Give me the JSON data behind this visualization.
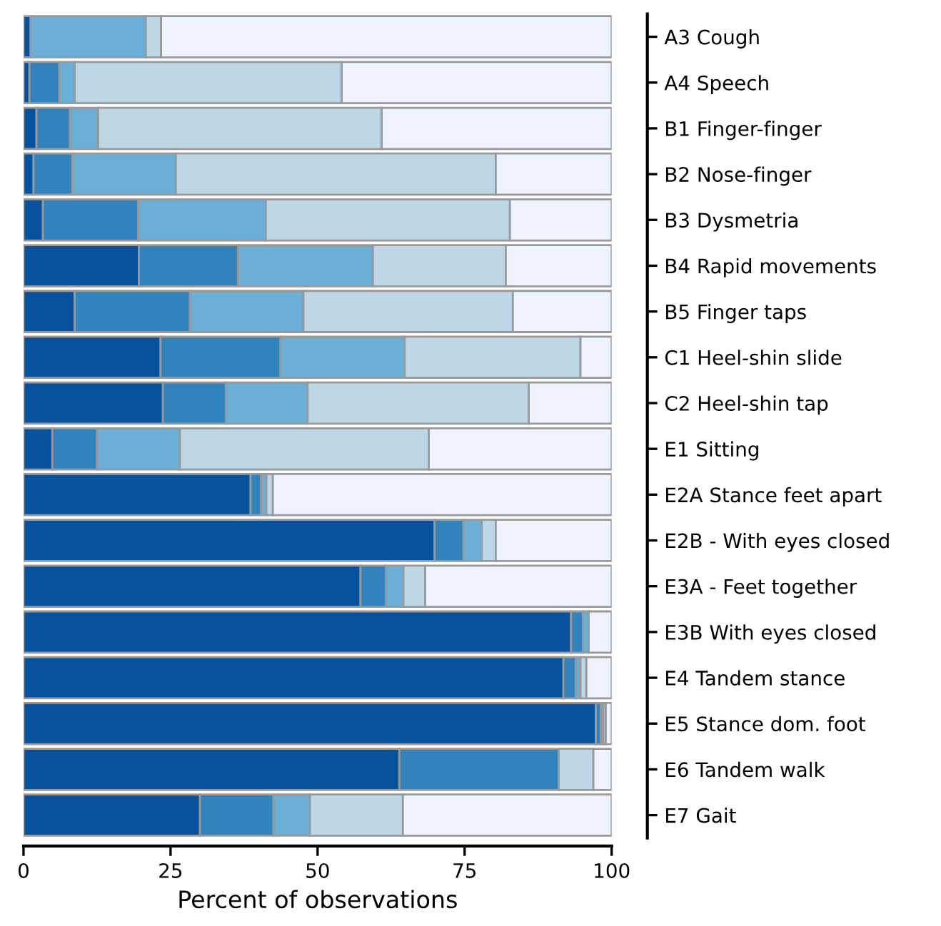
{
  "chart_data": {
    "type": "bar",
    "orientation": "horizontal",
    "stacked": true,
    "xlabel": "Percent of observations",
    "categories": [
      "A3 Cough",
      "A4 Speech",
      "B1 Finger-finger",
      "B2 Nose-finger",
      "B3 Dysmetria",
      "B4 Rapid movements",
      "B5 Finger taps",
      "C1 Heel-shin slide",
      "C2 Heel-shin tap",
      "E1 Sitting",
      "E2A Stance feet apart",
      "E2B - With eyes closed",
      "E3A - Feet together",
      "E3B With eyes closed",
      "E4 Tandem stance",
      "E5 Stance dom. foot",
      "E6 Tandem walk",
      "E7 Gait"
    ],
    "series": [
      {
        "color": "#08519c",
        "values": [
          1.2,
          1.0,
          2.2,
          1.7,
          3.3,
          19.6,
          8.7,
          23.3,
          23.7,
          4.9,
          38.6,
          69.9,
          57.3,
          93.1,
          91.8,
          97.3,
          63.9,
          30.0
        ]
      },
      {
        "color": "#3182bd",
        "values": [
          null,
          5.1,
          5.7,
          6.6,
          16.2,
          16.9,
          19.6,
          20.4,
          10.7,
          7.6,
          1.8,
          4.9,
          4.3,
          2.0,
          2.1,
          0.9,
          27.1,
          12.5
        ]
      },
      {
        "color": "#6baed6",
        "values": [
          19.6,
          2.6,
          4.8,
          17.6,
          21.7,
          22.9,
          19.3,
          21.1,
          13.9,
          14.1,
          0.9,
          3.1,
          3.0,
          1.0,
          0.8,
          0.4,
          null,
          6.2
        ]
      },
      {
        "color": "#bdd7e7",
        "values": [
          2.6,
          45.4,
          48.2,
          54.4,
          41.5,
          22.6,
          35.6,
          29.9,
          37.6,
          42.3,
          1.1,
          2.4,
          3.7,
          null,
          1.0,
          0.4,
          5.9,
          15.8
        ]
      },
      {
        "color": "#eff3ff",
        "values": [
          76.6,
          45.9,
          39.1,
          19.7,
          17.3,
          18.0,
          16.8,
          5.3,
          14.1,
          31.1,
          57.6,
          19.7,
          31.7,
          3.9,
          4.3,
          1.0,
          3.1,
          35.5
        ]
      }
    ],
    "xlim": [
      0,
      100
    ],
    "xticks": [
      0,
      25,
      50,
      75,
      100
    ],
    "grid": false,
    "legend": false
  }
}
